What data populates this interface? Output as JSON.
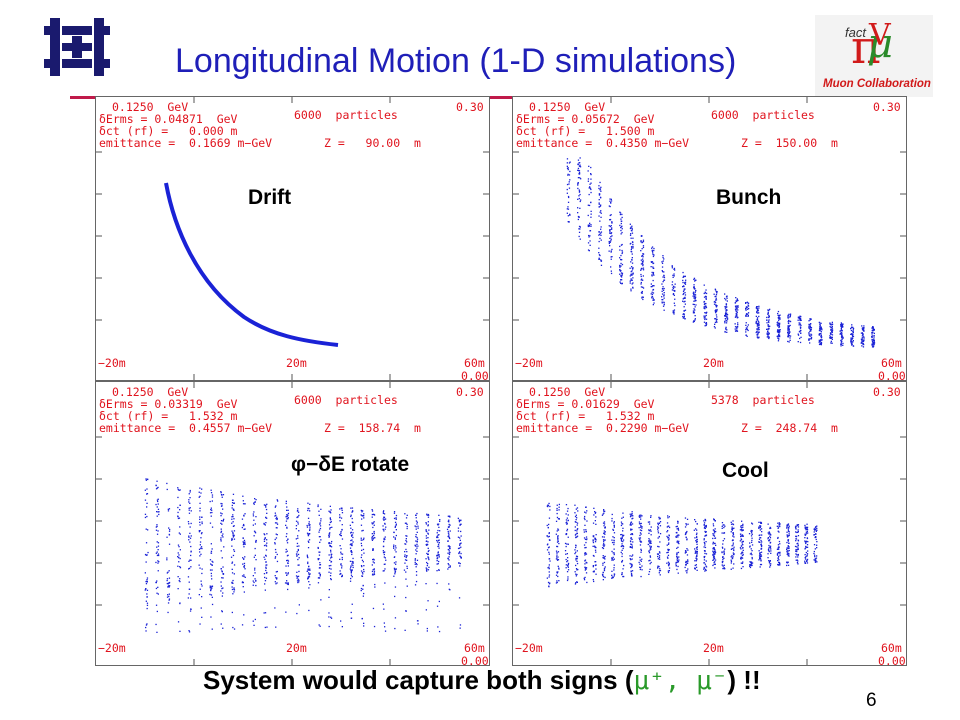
{
  "slide": {
    "title": "Longitudinal Motion (1-D simulations)",
    "footer_text": "System would capture both signs (",
    "footer_mu": "μ⁺, μ⁻",
    "footer_end": ") !!",
    "page_number": "6"
  },
  "logos": {
    "muon_collab_text": "Muon Collaboration",
    "fact_text": "fact"
  },
  "panels": [
    {
      "label": "Drift",
      "energy": "0.1250  GeV",
      "particles": "6000  particles",
      "line2": "δErms = 0.04871  GeV",
      "line3": "δct (rf) =   0.000 m",
      "line4": "emittance =  0.1669 m−GeV",
      "zpos": "Z =   90.00  m",
      "ytop": "0.30",
      "ybot": "0.00",
      "xmin": "−20m",
      "xmid": "20m",
      "xmax": "60m"
    },
    {
      "label": "Bunch",
      "energy": "0.1250  GeV",
      "particles": "6000  particles",
      "line2": "δErms = 0.05672  GeV",
      "line3": "δct (rf) =   1.500 m",
      "line4": "emittance =  0.4350 m−GeV",
      "zpos": "Z =  150.00  m",
      "ytop": "0.30",
      "ybot": "0.00",
      "xmin": "−20m",
      "xmid": "20m",
      "xmax": "60m"
    },
    {
      "label": "φ−δE rotate",
      "energy": "0.1250  GeV",
      "particles": "6000  particles",
      "line2": "δErms = 0.03319  GeV",
      "line3": "δct (rf) =   1.532 m",
      "line4": "emittance =  0.4557 m−GeV",
      "zpos": "Z =  158.74  m",
      "ytop": "0.30",
      "ybot": "0.00",
      "xmin": "−20m",
      "xmid": "20m",
      "xmax": "60m"
    },
    {
      "label": "Cool",
      "energy": "0.1250  GeV",
      "particles": "5378  particles",
      "line2": "δErms = 0.01629  GeV",
      "line3": "δct (rf) =   1.532 m",
      "line4": "emittance =  0.2290 m−GeV",
      "zpos": "Z =  248.74  m",
      "ytop": "0.30",
      "ybot": "0.00",
      "xmin": "−20m",
      "xmid": "20m",
      "xmax": "60m"
    }
  ],
  "colors": {
    "title": "#1f1fb8",
    "rule": "#c01a4a",
    "annotation": "#e0141e",
    "particles": "#1a22d6",
    "highlight": "#2a9a2a"
  }
}
